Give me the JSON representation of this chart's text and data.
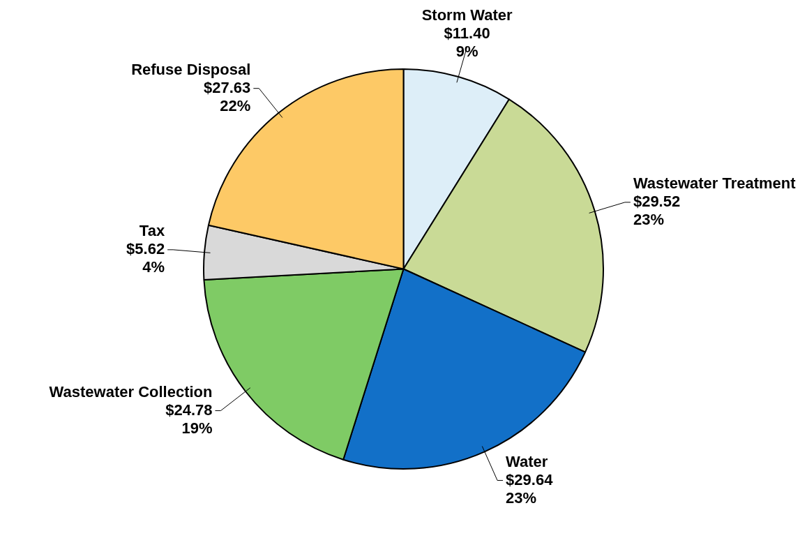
{
  "chart_data": {
    "type": "pie",
    "categories": [
      "Storm Water",
      "Wastewater Treatment",
      "Water",
      "Wastewater Collection",
      "Tax",
      "Refuse Disposal"
    ],
    "values": [
      11.4,
      29.52,
      29.64,
      24.78,
      5.62,
      27.63
    ],
    "value_labels": [
      "$11.40\n9%",
      "$29.52\n23%",
      "$29.64\n23%",
      "$24.78\n19%",
      "$5.62\n4%",
      "$27.63\n22%"
    ],
    "colors": [
      "#ddeef8",
      "#c9da96",
      "#1270c8",
      "#7fcb65",
      "#d9d9d9",
      "#fdc966"
    ],
    "legend": false
  }
}
